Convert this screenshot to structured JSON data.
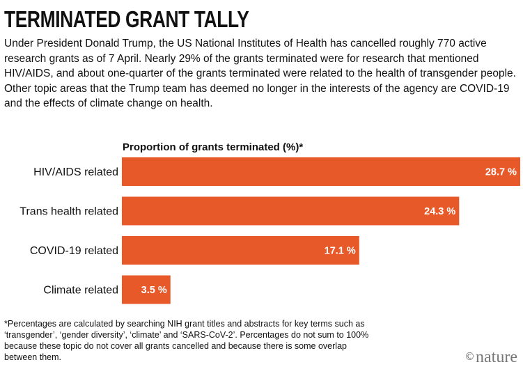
{
  "header": {
    "title": "TERMINATED GRANT TALLY",
    "subtitle": "Under President Donald Trump, the US National Institutes of Health has cancelled roughly 770 active research grants as of 7 April. Nearly 29% of the grants terminated were for research that mentioned HIV/AIDS, and about one-quarter of the grants terminated were related to the health of transgender people. Other topic areas that the Trump team has deemed no longer in the interests of the agency are COVID-19 and the effects of climate change on health."
  },
  "chart_data": {
    "type": "bar",
    "orientation": "horizontal",
    "title": "Proportion of grants terminated (%)*",
    "categories": [
      "HIV/AIDS related",
      "Trans health related",
      "COVID-19 related",
      "Climate related"
    ],
    "values": [
      28.7,
      24.3,
      17.1,
      3.5
    ],
    "value_labels": [
      "28.7 %",
      "24.3 %",
      "17.1 %",
      "3.5 %"
    ],
    "xlim": [
      0,
      28.7
    ],
    "grid": false,
    "bar_color": "#e8592a"
  },
  "footnote": "*Percentages are calculated by searching NIH grant titles and abstracts for key terms such as ‘transgender’, ‘gender diversity’, ‘climate’ and ‘SARS-CoV-2’. Percentages do not sum to 100% because these topic do not cover all grants cancelled and because there is some overlap between them.",
  "branding": {
    "copyright_symbol": "©",
    "name": "nature"
  }
}
